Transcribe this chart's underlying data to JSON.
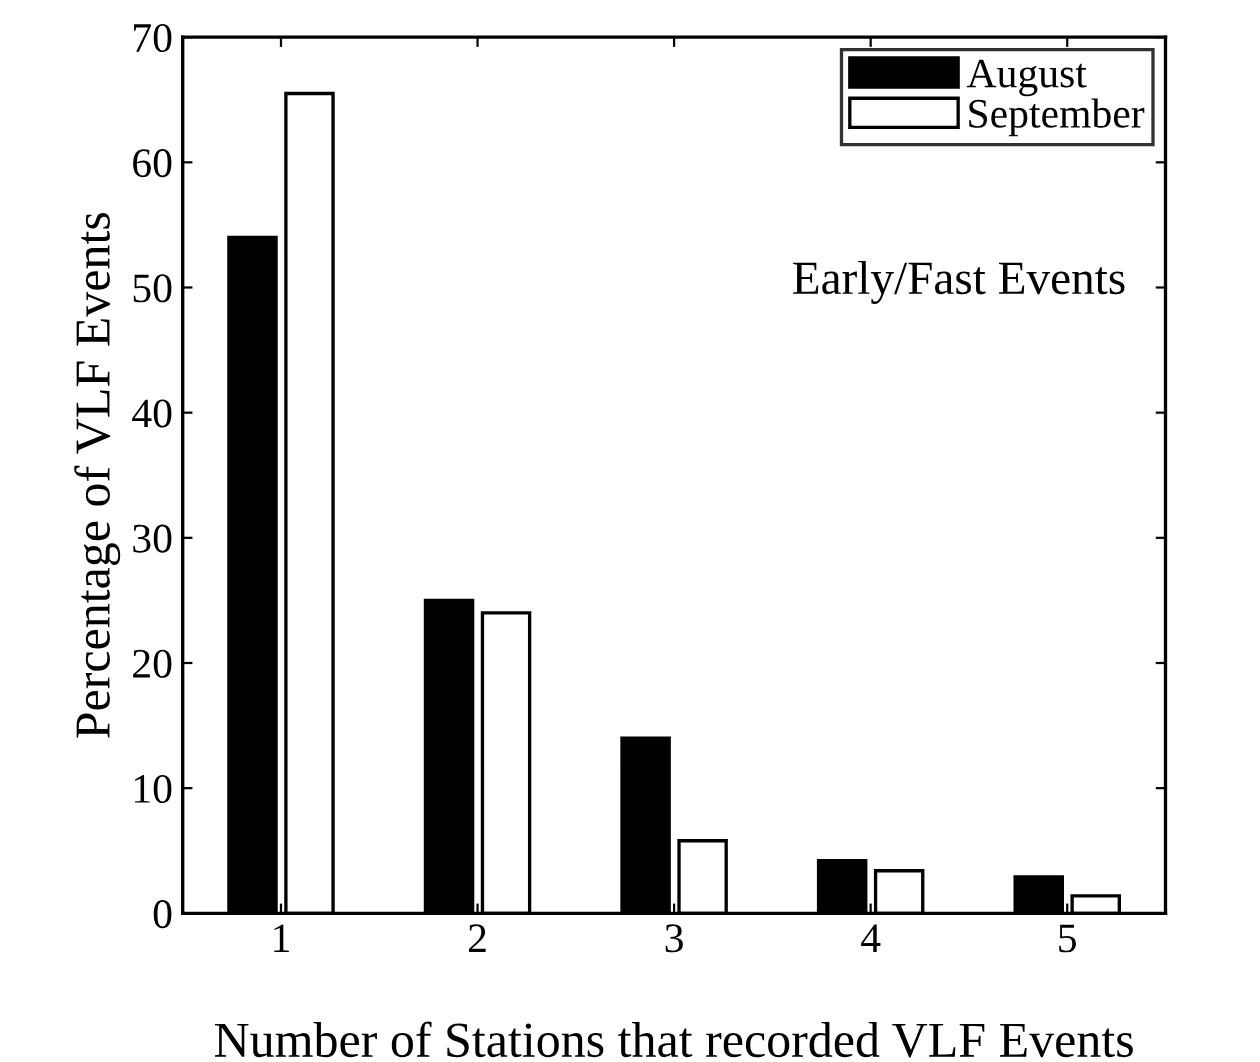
{
  "chart_data": {
    "type": "bar",
    "xlabel": "Number of Stations that recorded VLF Events",
    "ylabel": "Percentage of VLF Events",
    "categories": [
      "1",
      "2",
      "3",
      "4",
      "5"
    ],
    "series": [
      {
        "name": "August",
        "color": "#000000",
        "values": [
          54,
          25,
          14,
          4.2,
          2.9
        ]
      },
      {
        "name": "September",
        "color": "#ffffff",
        "values": [
          65.5,
          24,
          5.8,
          3.4,
          1.4
        ]
      }
    ],
    "ylim": [
      0,
      70
    ],
    "yticks": [
      0,
      10,
      20,
      30,
      40,
      50,
      60,
      70
    ],
    "annotations": [
      "Early/Fast Events"
    ],
    "legend": "top right",
    "grid": false
  }
}
